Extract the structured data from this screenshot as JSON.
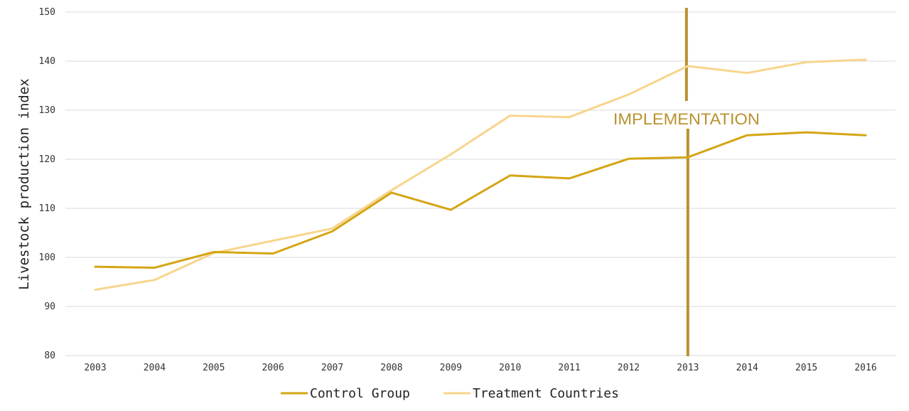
{
  "chart_data": {
    "type": "line",
    "categories": [
      "2003",
      "2004",
      "2005",
      "2006",
      "2007",
      "2008",
      "2009",
      "2010",
      "2011",
      "2012",
      "2013",
      "2014",
      "2015",
      "2016"
    ],
    "series": [
      {
        "name": "Control Group",
        "color": "#d4a514",
        "values": [
          98.1,
          97.9,
          101.1,
          100.8,
          105.3,
          113.2,
          109.7,
          116.7,
          116.1,
          120.1,
          120.4,
          124.9,
          125.5,
          124.9
        ]
      },
      {
        "name": "Treatment Countries",
        "color": "#f7d58c",
        "values": [
          93.4,
          95.4,
          100.9,
          103.4,
          105.9,
          113.7,
          121.0,
          128.9,
          128.6,
          133.2,
          139.0,
          137.6,
          139.8,
          140.3
        ]
      }
    ],
    "title": "",
    "xlabel": "",
    "ylabel": "Livestock production index",
    "ylim": [
      80,
      150
    ],
    "yticks": [
      "80",
      "90",
      "100",
      "110",
      "120",
      "130",
      "140",
      "150"
    ],
    "grid": true,
    "legend": "bottom",
    "annotation": {
      "text": "IMPLEMENTATION",
      "at": "2013",
      "color": "#b89230"
    }
  }
}
